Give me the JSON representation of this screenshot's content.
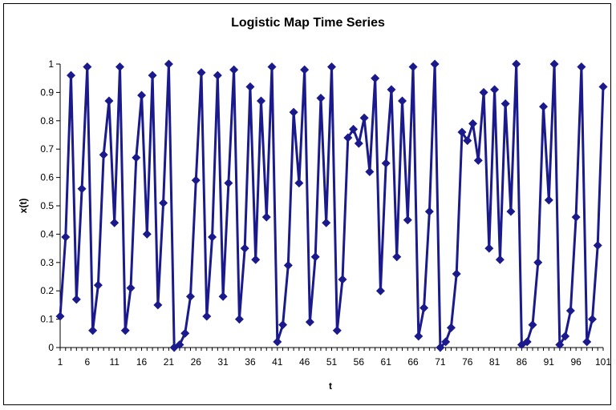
{
  "chart_data": {
    "type": "line",
    "title": "Logistic Map Time Series",
    "xlabel": "t",
    "ylabel": "x(t)",
    "ylim": [
      0,
      1
    ],
    "xlim": [
      1,
      101
    ],
    "y_ticks": [
      "0",
      "0.1",
      "0.2",
      "0.3",
      "0.4",
      "0.5",
      "0.6",
      "0.7",
      "0.8",
      "0.9",
      "1"
    ],
    "x_ticks": [
      "1",
      "6",
      "11",
      "16",
      "21",
      "26",
      "31",
      "36",
      "41",
      "46",
      "51",
      "56",
      "61",
      "66",
      "71",
      "76",
      "81",
      "86",
      "91",
      "96",
      "101"
    ],
    "grid": false,
    "legend": "none",
    "series_color": "#1a1a8c",
    "series": [
      {
        "values": [
          0.11,
          0.39,
          0.96,
          0.17,
          0.56,
          0.99,
          0.06,
          0.22,
          0.68,
          0.87,
          0.44,
          0.99,
          0.06,
          0.21,
          0.67,
          0.89,
          0.4,
          0.96,
          0.15,
          0.51,
          1.0,
          0.0,
          0.01,
          0.05,
          0.18,
          0.59,
          0.97,
          0.11,
          0.39,
          0.96,
          0.18,
          0.58,
          0.98,
          0.1,
          0.35,
          0.92,
          0.31,
          0.87,
          0.46,
          0.99,
          0.02,
          0.08,
          0.29,
          0.83,
          0.58,
          0.98,
          0.09,
          0.32,
          0.88,
          0.44,
          0.99,
          0.06,
          0.24,
          0.74,
          0.77,
          0.72,
          0.81,
          0.62,
          0.95,
          0.2,
          0.65,
          0.91,
          0.32,
          0.87,
          0.45,
          0.99,
          0.04,
          0.14,
          0.48,
          1.0,
          0.0,
          0.02,
          0.07,
          0.26,
          0.76,
          0.73,
          0.79,
          0.66,
          0.9,
          0.35,
          0.91,
          0.31,
          0.86,
          0.48,
          1.0,
          0.01,
          0.02,
          0.08,
          0.3,
          0.85,
          0.52,
          1.0,
          0.01,
          0.04,
          0.13,
          0.46,
          0.99,
          0.02,
          0.1,
          0.36,
          0.92
        ]
      }
    ]
  }
}
